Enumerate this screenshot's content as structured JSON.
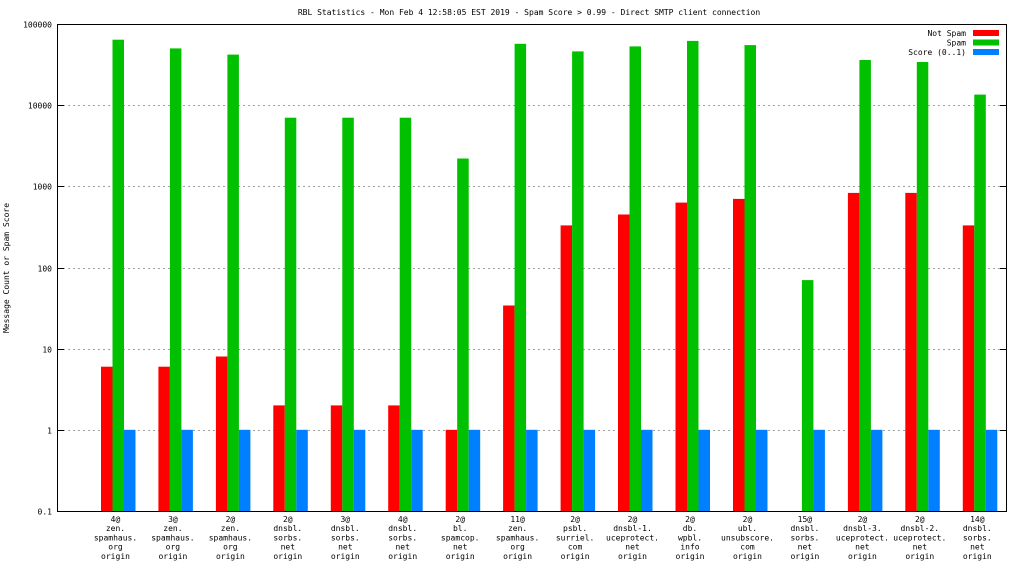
{
  "chart_data": {
    "type": "bar",
    "title": "RBL Statistics - Mon Feb  4 12:58:05 EST 2019 - Spam Score > 0.99 - Direct SMTP client connection",
    "xlabel": "",
    "ylabel": "Message Count or Spam Score",
    "y_scale": "log",
    "ylim": [
      0.1,
      100000
    ],
    "y_ticks": [
      "0.1",
      "1",
      "10",
      "100",
      "1000",
      "10000",
      "100000"
    ],
    "grid": true,
    "legend_position": "top-right",
    "categories": [
      [
        "4@",
        "zen.",
        "spamhaus.",
        "org",
        "origin"
      ],
      [
        "3@",
        "zen.",
        "spamhaus.",
        "org",
        "origin"
      ],
      [
        "2@",
        "zen.",
        "spamhaus.",
        "org",
        "origin"
      ],
      [
        "2@",
        "dnsbl.",
        "sorbs.",
        "net",
        "origin"
      ],
      [
        "3@",
        "dnsbl.",
        "sorbs.",
        "net",
        "origin"
      ],
      [
        "4@",
        "dnsbl.",
        "sorbs.",
        "net",
        "origin"
      ],
      [
        "2@",
        "bl.",
        "spamcop.",
        "net",
        "origin"
      ],
      [
        "11@",
        "zen.",
        "spamhaus.",
        "org",
        "origin"
      ],
      [
        "2@",
        "psbl.",
        "surriel.",
        "com",
        "origin"
      ],
      [
        "2@",
        "dnsbl-1.",
        "uceprotect.",
        "net",
        "origin"
      ],
      [
        "2@",
        "db.",
        "wpbl.",
        "info",
        "origin"
      ],
      [
        "2@",
        "ubl.",
        "unsubscore.",
        "com",
        "origin"
      ],
      [
        "15@",
        "dnsbl.",
        "sorbs.",
        "net",
        "origin"
      ],
      [
        "2@",
        "dnsbl-3.",
        "uceprotect.",
        "net",
        "origin"
      ],
      [
        "2@",
        "dnsbl-2.",
        "uceprotect.",
        "net",
        "origin"
      ],
      [
        "14@",
        "dnsbl.",
        "sorbs.",
        "net",
        "origin"
      ]
    ],
    "series": [
      {
        "name": "Not Spam",
        "color": "#ff0000",
        "values": [
          6,
          6,
          8,
          2,
          2,
          2,
          1,
          34,
          330,
          450,
          630,
          700,
          null,
          830,
          830,
          330
        ]
      },
      {
        "name": "Spam",
        "color": "#00c000",
        "values": [
          64000,
          50000,
          42000,
          7000,
          7000,
          7000,
          2200,
          57000,
          46000,
          53000,
          62000,
          55000,
          70,
          36000,
          34000,
          13500
        ]
      },
      {
        "name": "Score (0..1)",
        "color": "#0080ff",
        "values": [
          1,
          1,
          1,
          1,
          1,
          1,
          1,
          1,
          1,
          1,
          1,
          1,
          1,
          1,
          1,
          1
        ]
      }
    ]
  }
}
